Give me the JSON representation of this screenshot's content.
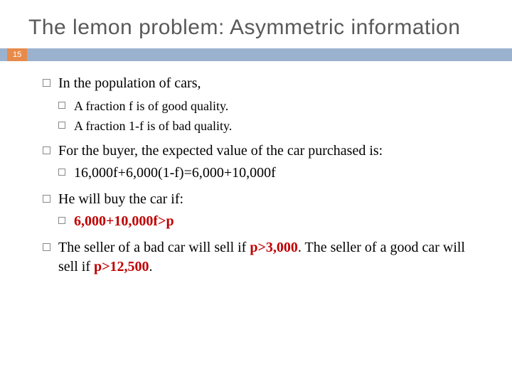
{
  "slide": {
    "title": "The lemon problem: Asymmetric information",
    "page_number": "15",
    "colors": {
      "title_text": "#595959",
      "bar_blue": "#9ab2ce",
      "bar_orange": "#e88b4a",
      "red_text": "#c00000",
      "background": "#ffffff"
    },
    "bullets": {
      "b1": "In the population of cars,",
      "b1_sub1": "A fraction f is of good quality.",
      "b1_sub2": "A fraction 1-f is of bad quality.",
      "b2": "For the buyer, the expected value of the car purchased is:",
      "b2_sub1": "16,000f+6,000(1-f)=6,000+10,000f",
      "b3": "He will buy the car if:",
      "b3_sub1": "6,000+10,000f>p",
      "b4_part1": "The seller of a bad car will sell if ",
      "b4_red1": "p>3,000",
      "b4_part2": ". The seller of a good car will sell if ",
      "b4_red2": "p>12,500",
      "b4_part3": "."
    }
  }
}
